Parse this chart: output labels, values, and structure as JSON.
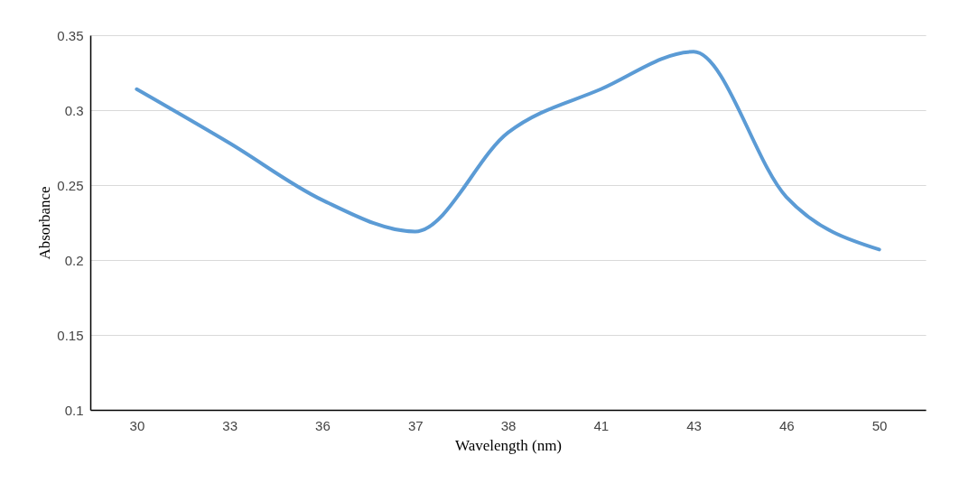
{
  "chart_data": {
    "type": "line",
    "xlabel": "Wavelength (nm)",
    "ylabel": "Absorbance",
    "categories": [
      "30",
      "33",
      "36",
      "37",
      "38",
      "41",
      "43",
      "46",
      "50"
    ],
    "series": [
      {
        "color": "#5b9bd5",
        "values": [
          0.314,
          0.278,
          0.24,
          0.219,
          0.285,
          0.314,
          0.339,
          0.242,
          0.207
        ]
      }
    ],
    "ylim": [
      0.1,
      0.35
    ],
    "yticks": [
      0.1,
      0.15,
      0.2,
      0.25,
      0.3,
      0.35
    ],
    "grid": "y",
    "legend": false,
    "marker": "none",
    "line_style": "solid"
  }
}
